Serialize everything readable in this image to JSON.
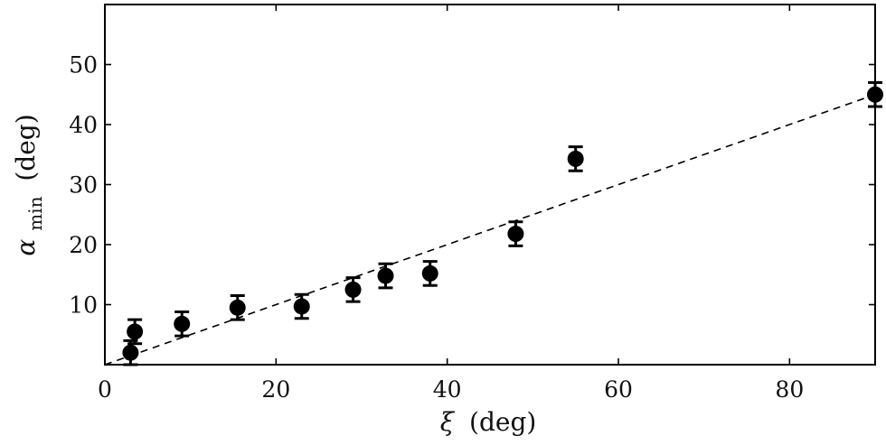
{
  "chart_data": {
    "type": "scatter",
    "xlabel_symbol": "ξ",
    "xlabel_unit": "(deg)",
    "ylabel_symbol": "α",
    "ylabel_subscript": "min",
    "ylabel_unit": "(deg)",
    "xlim": [
      0,
      90
    ],
    "ylim": [
      0,
      60
    ],
    "xticks": [
      0,
      20,
      40,
      60,
      80
    ],
    "yticks": [
      10,
      20,
      30,
      40,
      50
    ],
    "grid": false,
    "legend": "none",
    "series": [
      {
        "points": [
          {
            "x": 3.0,
            "y": 2.0,
            "err": 2.0
          },
          {
            "x": 3.5,
            "y": 5.5,
            "err": 2.0
          },
          {
            "x": 9.0,
            "y": 6.8,
            "err": 2.0
          },
          {
            "x": 15.5,
            "y": 9.5,
            "err": 2.0
          },
          {
            "x": 23.0,
            "y": 9.7,
            "err": 2.0
          },
          {
            "x": 29.0,
            "y": 12.5,
            "err": 2.0
          },
          {
            "x": 32.8,
            "y": 14.8,
            "err": 2.0
          },
          {
            "x": 38.0,
            "y": 15.2,
            "err": 2.0
          },
          {
            "x": 48.0,
            "y": 21.8,
            "err": 2.0
          },
          {
            "x": 55.0,
            "y": 34.3,
            "err": 2.0
          },
          {
            "x": 90.0,
            "y": 45.0,
            "err": 2.0
          }
        ]
      }
    ],
    "fit_line": {
      "style": "dashed",
      "x": [
        0,
        90
      ],
      "y": [
        0,
        45
      ]
    },
    "colors": {
      "marker": "#000000",
      "axis": "#000000",
      "text": "#111111"
    }
  }
}
